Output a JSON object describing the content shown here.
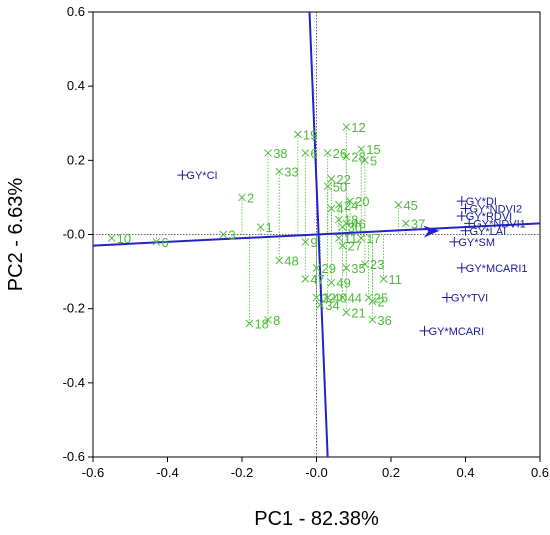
{
  "chart_data": {
    "type": "scatter",
    "title": "",
    "xlabel": "PC1 - 82.38%",
    "ylabel": "PC2 - 6.63%",
    "xlim": [
      -0.6,
      0.6
    ],
    "ylim": [
      -0.6,
      0.6
    ],
    "xticks": [
      "-0.6",
      "-0.4",
      "-0.2",
      "-0.0",
      "0.2",
      "0.4",
      "0.6"
    ],
    "yticks": [
      "-0.6",
      "-0.4",
      "-0.2",
      "-0.0",
      "0.2",
      "0.4",
      "0.6"
    ],
    "grid": false,
    "colors": {
      "observations": "#4cbb3a",
      "variables": "#1a1a99",
      "axes": "#2222cc"
    },
    "observations": [
      {
        "label": "10",
        "x": -0.55,
        "y": -0.01
      },
      {
        "label": "6",
        "x": -0.43,
        "y": -0.02
      },
      {
        "label": "3",
        "x": -0.25,
        "y": 0.0
      },
      {
        "label": "2",
        "x": -0.2,
        "y": 0.1
      },
      {
        "label": "1",
        "x": -0.15,
        "y": 0.02
      },
      {
        "label": "38",
        "x": -0.13,
        "y": 0.22
      },
      {
        "label": "33",
        "x": -0.1,
        "y": 0.17
      },
      {
        "label": "19",
        "x": -0.05,
        "y": 0.27
      },
      {
        "label": "6",
        "x": -0.03,
        "y": 0.22
      },
      {
        "label": "26",
        "x": 0.03,
        "y": 0.22
      },
      {
        "label": "12",
        "x": 0.08,
        "y": 0.29
      },
      {
        "label": "15",
        "x": 0.12,
        "y": 0.23
      },
      {
        "label": "28",
        "x": 0.08,
        "y": 0.21
      },
      {
        "label": "5",
        "x": 0.13,
        "y": 0.2
      },
      {
        "label": "22",
        "x": 0.04,
        "y": 0.15
      },
      {
        "label": "50",
        "x": 0.03,
        "y": 0.13
      },
      {
        "label": "45",
        "x": 0.22,
        "y": 0.08
      },
      {
        "label": "20",
        "x": 0.09,
        "y": 0.09
      },
      {
        "label": "37",
        "x": 0.24,
        "y": 0.03
      },
      {
        "label": "4",
        "x": 0.04,
        "y": 0.07
      },
      {
        "label": "24",
        "x": 0.06,
        "y": 0.08
      },
      {
        "label": "18",
        "x": 0.06,
        "y": 0.04
      },
      {
        "label": "46",
        "x": 0.08,
        "y": 0.03
      },
      {
        "label": "30",
        "x": 0.07,
        "y": 0.02
      },
      {
        "label": "9",
        "x": -0.03,
        "y": -0.02
      },
      {
        "label": "11",
        "x": 0.06,
        "y": -0.01
      },
      {
        "label": "27",
        "x": 0.07,
        "y": -0.03
      },
      {
        "label": "17",
        "x": 0.12,
        "y": -0.01
      },
      {
        "label": "48",
        "x": -0.1,
        "y": -0.07
      },
      {
        "label": "29",
        "x": 0.0,
        "y": -0.09
      },
      {
        "label": "35",
        "x": 0.08,
        "y": -0.09
      },
      {
        "label": "23",
        "x": 0.13,
        "y": -0.08
      },
      {
        "label": "49",
        "x": 0.04,
        "y": -0.13
      },
      {
        "label": "47",
        "x": -0.03,
        "y": -0.12
      },
      {
        "label": "11",
        "x": 0.18,
        "y": -0.12
      },
      {
        "label": "32",
        "x": 0.0,
        "y": -0.17
      },
      {
        "label": "40",
        "x": 0.03,
        "y": -0.17
      },
      {
        "label": "44",
        "x": 0.07,
        "y": -0.17
      },
      {
        "label": "25",
        "x": 0.14,
        "y": -0.17
      },
      {
        "label": "2",
        "x": 0.15,
        "y": -0.18
      },
      {
        "label": "34",
        "x": 0.01,
        "y": -0.19
      },
      {
        "label": "21",
        "x": 0.08,
        "y": -0.21
      },
      {
        "label": "36",
        "x": 0.15,
        "y": -0.23
      },
      {
        "label": "8",
        "x": -0.13,
        "y": -0.23
      },
      {
        "label": "18",
        "x": -0.18,
        "y": -0.24
      }
    ],
    "variables": [
      {
        "label": "GY*CI",
        "x": -0.36,
        "y": 0.16
      },
      {
        "label": "GY*DI",
        "x": 0.39,
        "y": 0.09
      },
      {
        "label": "GY*NDVI2",
        "x": 0.4,
        "y": 0.07
      },
      {
        "label": "GY*RDVI",
        "x": 0.39,
        "y": 0.05
      },
      {
        "label": "GY*NDVI1",
        "x": 0.41,
        "y": 0.03
      },
      {
        "label": "GY*LAI",
        "x": 0.4,
        "y": 0.01
      },
      {
        "label": "GY*SM",
        "x": 0.37,
        "y": -0.02
      },
      {
        "label": "GY*MCARI1",
        "x": 0.39,
        "y": -0.09
      },
      {
        "label": "GY*TVI",
        "x": 0.35,
        "y": -0.17
      },
      {
        "label": "GY*MCARI",
        "x": 0.29,
        "y": -0.26
      }
    ],
    "axis_lines": [
      {
        "name": "PC1",
        "from": [
          -0.6,
          -0.03
        ],
        "to": [
          0.6,
          0.03
        ],
        "arrow": [
          0.33,
          0.01
        ]
      },
      {
        "name": "PC2",
        "from": [
          -0.02,
          0.63
        ],
        "to": [
          0.03,
          -0.6
        ]
      }
    ]
  }
}
